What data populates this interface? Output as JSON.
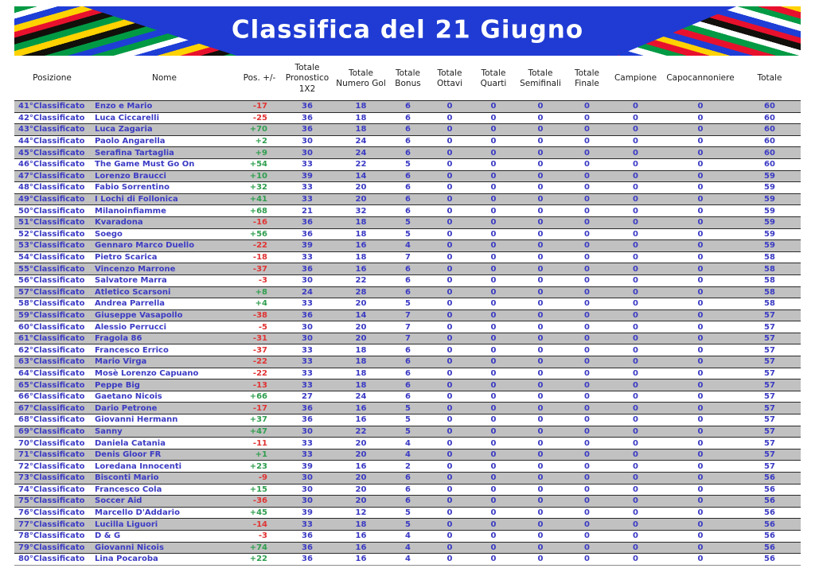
{
  "title": "Classifica del 21 Giugno",
  "colors": {
    "banner_blue": "#1f3bd3",
    "row_gray": "#c1c1c1",
    "text_blue": "#3b3bc4",
    "delta_negative_red": "#e03333",
    "delta_positive_green": "#2f9e4e",
    "stripe_palette": [
      "#009a44",
      "#ffffff",
      "#1e3ed6",
      "#ffd200",
      "#e8112d",
      "#12100b"
    ]
  },
  "table": {
    "columns": [
      {
        "key": "rank",
        "label": "Posizione"
      },
      {
        "key": "name",
        "label": "Nome"
      },
      {
        "key": "delta",
        "label": "Pos. +/-"
      },
      {
        "key": "pronostico",
        "label": "Totale Pronostico 1X2"
      },
      {
        "key": "gol",
        "label": "Totale Numero Gol"
      },
      {
        "key": "bonus",
        "label": "Totale Bonus"
      },
      {
        "key": "ottavi",
        "label": "Totale Ottavi"
      },
      {
        "key": "quarti",
        "label": "Totale Quarti"
      },
      {
        "key": "semifinali",
        "label": "Totale Semifinali"
      },
      {
        "key": "finale",
        "label": "Totale Finale"
      },
      {
        "key": "campione",
        "label": "Campione"
      },
      {
        "key": "capocannoniere",
        "label": "Capocannoniere"
      },
      {
        "key": "totale",
        "label": "Totale"
      }
    ],
    "row_fields": [
      "rank",
      "name",
      "delta",
      "pronostico",
      "gol",
      "bonus",
      "ottavi",
      "quarti",
      "semifinali",
      "finale",
      "campione",
      "capocannoniere",
      "totale"
    ],
    "rows": [
      [
        "41°Classificato",
        "Enzo e Mario",
        "-17",
        36,
        18,
        6,
        0,
        0,
        0,
        0,
        0,
        0,
        60
      ],
      [
        "42°Classificato",
        "Luca Ciccarelli",
        "-25",
        36,
        18,
        6,
        0,
        0,
        0,
        0,
        0,
        0,
        60
      ],
      [
        "43°Classificato",
        "Luca Zagaria",
        "+70",
        36,
        18,
        6,
        0,
        0,
        0,
        0,
        0,
        0,
        60
      ],
      [
        "44°Classificato",
        "Paolo Angarella",
        "+2",
        30,
        24,
        6,
        0,
        0,
        0,
        0,
        0,
        0,
        60
      ],
      [
        "45°Classificato",
        "Serafina Tartaglia",
        "+9",
        30,
        24,
        6,
        0,
        0,
        0,
        0,
        0,
        0,
        60
      ],
      [
        "46°Classificato",
        "The Game Must Go On",
        "+54",
        33,
        22,
        5,
        0,
        0,
        0,
        0,
        0,
        0,
        60
      ],
      [
        "47°Classificato",
        "Lorenzo Braucci",
        "+10",
        39,
        14,
        6,
        0,
        0,
        0,
        0,
        0,
        0,
        59
      ],
      [
        "48°Classificato",
        "Fabio Sorrentino",
        "+32",
        33,
        20,
        6,
        0,
        0,
        0,
        0,
        0,
        0,
        59
      ],
      [
        "49°Classificato",
        "I Lochi di Follonica",
        "+41",
        33,
        20,
        6,
        0,
        0,
        0,
        0,
        0,
        0,
        59
      ],
      [
        "50°Classificato",
        "Milanoinfiamme",
        "+68",
        21,
        32,
        6,
        0,
        0,
        0,
        0,
        0,
        0,
        59
      ],
      [
        "51°Classificato",
        "Kvaradona",
        "-16",
        36,
        18,
        5,
        0,
        0,
        0,
        0,
        0,
        0,
        59
      ],
      [
        "52°Classificato",
        "Soego",
        "+56",
        36,
        18,
        5,
        0,
        0,
        0,
        0,
        0,
        0,
        59
      ],
      [
        "53°Classificato",
        "Gennaro Marco Duello",
        "-22",
        39,
        16,
        4,
        0,
        0,
        0,
        0,
        0,
        0,
        59
      ],
      [
        "54°Classificato",
        "Pietro Scarica",
        "-18",
        33,
        18,
        7,
        0,
        0,
        0,
        0,
        0,
        0,
        58
      ],
      [
        "55°Classificato",
        "Vincenzo Marrone",
        "-37",
        36,
        16,
        6,
        0,
        0,
        0,
        0,
        0,
        0,
        58
      ],
      [
        "56°Classificato",
        "Salvatore Marra",
        "-3",
        30,
        22,
        6,
        0,
        0,
        0,
        0,
        0,
        0,
        58
      ],
      [
        "57°Classificato",
        "Atletico Scarsoni",
        "+8",
        24,
        28,
        6,
        0,
        0,
        0,
        0,
        0,
        0,
        58
      ],
      [
        "58°Classificato",
        "Andrea Parrella",
        "+4",
        33,
        20,
        5,
        0,
        0,
        0,
        0,
        0,
        0,
        58
      ],
      [
        "59°Classificato",
        "Giuseppe Vasapollo",
        "-38",
        36,
        14,
        7,
        0,
        0,
        0,
        0,
        0,
        0,
        57
      ],
      [
        "60°Classificato",
        "Alessio Perrucci",
        "-5",
        30,
        20,
        7,
        0,
        0,
        0,
        0,
        0,
        0,
        57
      ],
      [
        "61°Classificato",
        "Fragola 86",
        "-31",
        30,
        20,
        7,
        0,
        0,
        0,
        0,
        0,
        0,
        57
      ],
      [
        "62°Classificato",
        "Francesco Errico",
        "-37",
        33,
        18,
        6,
        0,
        0,
        0,
        0,
        0,
        0,
        57
      ],
      [
        "63°Classificato",
        "Mario Virga",
        "-22",
        33,
        18,
        6,
        0,
        0,
        0,
        0,
        0,
        0,
        57
      ],
      [
        "64°Classificato",
        "Mosè Lorenzo Capuano",
        "-22",
        33,
        18,
        6,
        0,
        0,
        0,
        0,
        0,
        0,
        57
      ],
      [
        "65°Classificato",
        "Peppe Big",
        "-13",
        33,
        18,
        6,
        0,
        0,
        0,
        0,
        0,
        0,
        57
      ],
      [
        "66°Classificato",
        "Gaetano Nicois",
        "+66",
        27,
        24,
        6,
        0,
        0,
        0,
        0,
        0,
        0,
        57
      ],
      [
        "67°Classificato",
        "Dario Petrone",
        "-17",
        36,
        16,
        5,
        0,
        0,
        0,
        0,
        0,
        0,
        57
      ],
      [
        "68°Classificato",
        "Giovanni Hermann",
        "+37",
        36,
        16,
        5,
        0,
        0,
        0,
        0,
        0,
        0,
        57
      ],
      [
        "69°Classificato",
        "Sanny",
        "+47",
        30,
        22,
        5,
        0,
        0,
        0,
        0,
        0,
        0,
        57
      ],
      [
        "70°Classificato",
        "Daniela Catania",
        "-11",
        33,
        20,
        4,
        0,
        0,
        0,
        0,
        0,
        0,
        57
      ],
      [
        "71°Classificato",
        "Denis Gloor FR",
        "+1",
        33,
        20,
        4,
        0,
        0,
        0,
        0,
        0,
        0,
        57
      ],
      [
        "72°Classificato",
        "Loredana Innocenti",
        "+23",
        39,
        16,
        2,
        0,
        0,
        0,
        0,
        0,
        0,
        57
      ],
      [
        "73°Classificato",
        "Bisconti Mario",
        "-9",
        30,
        20,
        6,
        0,
        0,
        0,
        0,
        0,
        0,
        56
      ],
      [
        "74°Classificato",
        "Francesco Cola",
        "+15",
        30,
        20,
        6,
        0,
        0,
        0,
        0,
        0,
        0,
        56
      ],
      [
        "75°Classificato",
        "Soccer Aid",
        "-36",
        30,
        20,
        6,
        0,
        0,
        0,
        0,
        0,
        0,
        56
      ],
      [
        "76°Classificato",
        "Marcello D'Addario",
        "+45",
        39,
        12,
        5,
        0,
        0,
        0,
        0,
        0,
        0,
        56
      ],
      [
        "77°Classificato",
        "Lucilla Liguori",
        "-14",
        33,
        18,
        5,
        0,
        0,
        0,
        0,
        0,
        0,
        56
      ],
      [
        "78°Classificato",
        "D & G",
        "-3",
        36,
        16,
        4,
        0,
        0,
        0,
        0,
        0,
        0,
        56
      ],
      [
        "79°Classificato",
        "Giovanni Nicois",
        "+74",
        36,
        16,
        4,
        0,
        0,
        0,
        0,
        0,
        0,
        56
      ],
      [
        "80°Classificato",
        "Lina Pocaroba",
        "+22",
        36,
        16,
        4,
        0,
        0,
        0,
        0,
        0,
        0,
        56
      ]
    ]
  }
}
